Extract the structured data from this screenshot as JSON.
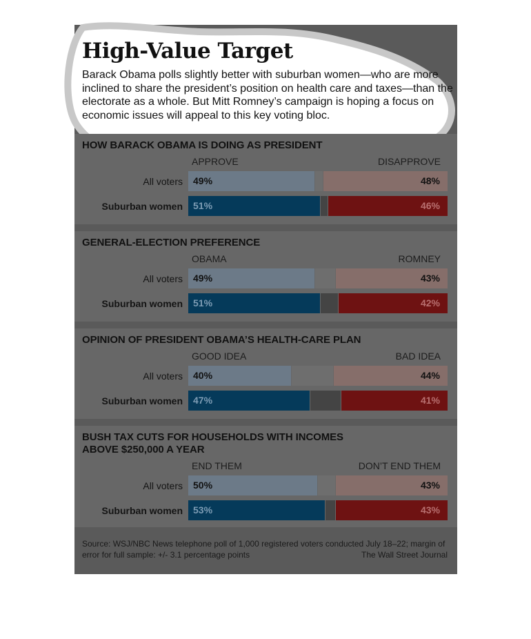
{
  "title": "High-Value Target",
  "subtitle": "Barack Obama polls slightly better with suburban women—who are more inclined to share the president’s position on health care and taxes—than the electorate as a whole. But Mitt Romney’s campaign is hoping a focus on economic issues will appeal to this key voting bloc.",
  "colors": {
    "background": "#5a5a5a",
    "panel": "#676767",
    "left_all": "#6c7a88",
    "left_suburban": "#053a5a",
    "undecided_all": "#6e6e6e",
    "undecided_suburban": "#444444",
    "right_all": "#866e6a",
    "right_suburban": "#6e1212",
    "highlight": "#ffffff"
  },
  "chart_data": [
    {
      "type": "bar",
      "title": "HOW BARACK OBAMA IS DOING AS PRESIDENT",
      "left_label": "APPROVE",
      "right_label": "DISAPPROVE",
      "categories": [
        "All voters",
        "Suburban women"
      ],
      "series": [
        {
          "name": "APPROVE",
          "values": [
            49,
            51
          ],
          "labels": [
            "49%",
            "51%"
          ]
        },
        {
          "name": "DISAPPROVE",
          "values": [
            48,
            46
          ],
          "labels": [
            "48%",
            "46%"
          ]
        }
      ],
      "xlim": [
        0,
        100
      ]
    },
    {
      "type": "bar",
      "title": "GENERAL-ELECTION PREFERENCE",
      "left_label": "OBAMA",
      "right_label": "ROMNEY",
      "categories": [
        "All voters",
        "Suburban women"
      ],
      "series": [
        {
          "name": "OBAMA",
          "values": [
            49,
            51
          ],
          "labels": [
            "49%",
            "51%"
          ]
        },
        {
          "name": "ROMNEY",
          "values": [
            43,
            42
          ],
          "labels": [
            "43%",
            "42%"
          ]
        }
      ],
      "xlim": [
        0,
        100
      ]
    },
    {
      "type": "bar",
      "title": "OPINION OF PRESIDENT OBAMA’S HEALTH-CARE PLAN",
      "left_label": "GOOD IDEA",
      "right_label": "BAD IDEA",
      "categories": [
        "All voters",
        "Suburban women"
      ],
      "series": [
        {
          "name": "GOOD IDEA",
          "values": [
            40,
            47
          ],
          "labels": [
            "40%",
            "47%"
          ]
        },
        {
          "name": "BAD IDEA",
          "values": [
            44,
            41
          ],
          "labels": [
            "44%",
            "41%"
          ]
        }
      ],
      "xlim": [
        0,
        100
      ]
    },
    {
      "type": "bar",
      "title": "BUSH TAX CUTS FOR HOUSEHOLDS WITH INCOMES ABOVE $250,000 A YEAR",
      "left_label": "END THEM",
      "right_label": "DON’T END THEM",
      "categories": [
        "All voters",
        "Suburban women"
      ],
      "series": [
        {
          "name": "END THEM",
          "values": [
            50,
            53
          ],
          "labels": [
            "50%",
            "53%"
          ]
        },
        {
          "name": "DON’T END THEM",
          "values": [
            43,
            43
          ],
          "labels": [
            "43%",
            "43%"
          ]
        }
      ],
      "xlim": [
        0,
        100
      ]
    }
  ],
  "source": "Source: WSJ/NBC News telephone poll of 1,000 registered voters conducted July 18–22; margin of error for full sample: +/- 3.1 percentage points",
  "credit": "The Wall Street Journal"
}
